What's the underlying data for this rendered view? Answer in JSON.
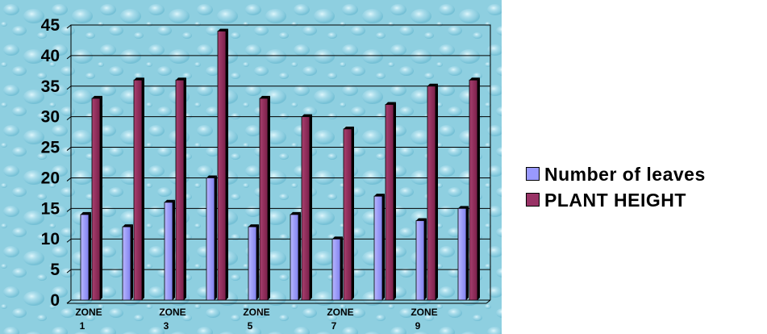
{
  "chart_data": {
    "type": "bar",
    "categories": [
      "ZONE 1",
      "",
      "ZONE 3",
      "",
      "ZONE 5",
      "",
      "ZONE 7",
      "",
      "ZONE 9",
      ""
    ],
    "category_labels": [
      {
        "line1": "ZONE",
        "line2": "1"
      },
      {
        "line1": "",
        "line2": ""
      },
      {
        "line1": "ZONE",
        "line2": "3"
      },
      {
        "line1": "",
        "line2": ""
      },
      {
        "line1": "ZONE",
        "line2": "5"
      },
      {
        "line1": "",
        "line2": ""
      },
      {
        "line1": "ZONE",
        "line2": "7"
      },
      {
        "line1": "",
        "line2": ""
      },
      {
        "line1": "ZONE",
        "line2": "9"
      },
      {
        "line1": "",
        "line2": ""
      }
    ],
    "series": [
      {
        "name": "Number of leaves",
        "color": "#9999ff",
        "values": [
          14,
          12,
          16,
          20,
          12,
          14,
          10,
          17,
          13,
          15
        ]
      },
      {
        "name": "PLANT HEIGHT",
        "color": "#993366",
        "values": [
          33,
          36,
          36,
          44,
          33,
          30,
          28,
          32,
          35,
          36
        ]
      }
    ],
    "ylim": [
      0,
      45
    ],
    "yticks": [
      0,
      5,
      10,
      15,
      20,
      25,
      30,
      35,
      40,
      45
    ],
    "grid": true,
    "legend": "right"
  },
  "legend": {
    "items": [
      {
        "label": "Number of leaves",
        "color": "#9999ff"
      },
      {
        "label": "PLANT HEIGHT",
        "color": "#993366"
      }
    ]
  }
}
